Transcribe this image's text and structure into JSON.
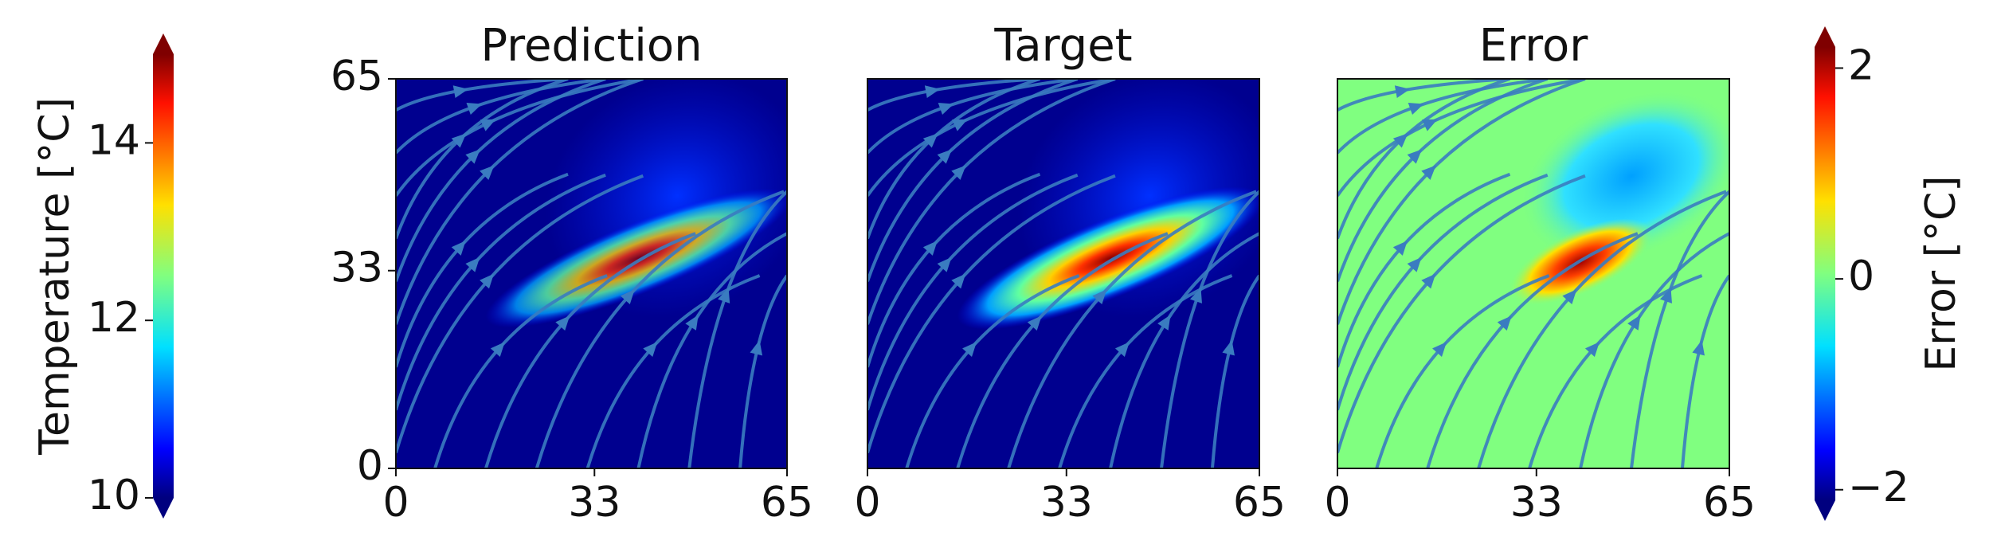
{
  "chart_data": [
    {
      "type": "colorbar",
      "label": "Temperature [°C]",
      "colormap": "jet",
      "lim": [
        10,
        15
      ],
      "ticks": [
        10,
        12,
        14
      ],
      "extend": "both"
    },
    {
      "type": "heatmap",
      "title": "Prediction",
      "xlim": [
        0,
        65
      ],
      "ylim": [
        0,
        65
      ],
      "xticks": [
        0,
        33,
        65
      ],
      "yticks": [
        0,
        33,
        65
      ],
      "background_color": "#00008f"
    },
    {
      "type": "heatmap",
      "title": "Target",
      "xlim": [
        0,
        65
      ],
      "ylim": [
        0,
        65
      ],
      "xticks": [
        0,
        33,
        65
      ],
      "background_color": "#00008f"
    },
    {
      "type": "heatmap",
      "title": "Error",
      "xlim": [
        0,
        65
      ],
      "ylim": [
        0,
        65
      ],
      "xticks": [
        0,
        33,
        65
      ],
      "background_color": "#80ff80"
    },
    {
      "type": "colorbar",
      "label": "Error [°C]",
      "colormap": "jet",
      "lim": [
        -2.1,
        2.2
      ],
      "ticks": [
        {
          "value": -2,
          "label": "−2"
        },
        0,
        2
      ],
      "extend": "both"
    }
  ]
}
